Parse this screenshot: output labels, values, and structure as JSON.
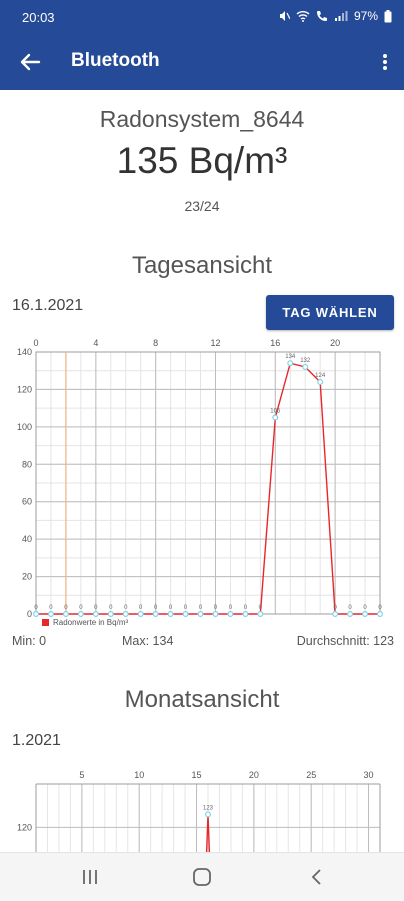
{
  "status_bar": {
    "time": "20:03",
    "battery": "97%"
  },
  "app_bar": {
    "title": "Bluetooth"
  },
  "device": {
    "name": "Radonsystem_8644",
    "current_value": "135 Bq/m³",
    "count": "23/24"
  },
  "daily": {
    "section_title": "Tagesansicht",
    "date": "16.1.2021",
    "select_day_label": "TAG WÄHLEN",
    "min_label": "Min: 0",
    "max_label": "Max: 134",
    "avg_label": "Durchschnitt: 123"
  },
  "monthly": {
    "section_title": "Monatsansicht",
    "date": "1.2021"
  },
  "colors": {
    "primary": "#254a97",
    "line": "#e8272b",
    "point": "#7fd3e6",
    "marker": "#f2b27a"
  },
  "chart_data": [
    {
      "type": "line",
      "legend": "Radonwerte in Bq/m³",
      "x_ticks": [
        0,
        4,
        8,
        12,
        16,
        20
      ],
      "y_ticks": [
        0,
        20,
        40,
        60,
        80,
        100,
        120,
        140
      ],
      "xlim": [
        0,
        23
      ],
      "ylim": [
        0,
        140
      ],
      "x": [
        0,
        1,
        2,
        3,
        4,
        5,
        6,
        7,
        8,
        9,
        10,
        11,
        12,
        13,
        14,
        15,
        16,
        17,
        18,
        19,
        20,
        21,
        22,
        23
      ],
      "series": [
        {
          "values": [
            0,
            0,
            0,
            0,
            0,
            0,
            0,
            0,
            0,
            0,
            0,
            0,
            0,
            0,
            0,
            0,
            105,
            134,
            132,
            124,
            0,
            0,
            0,
            0
          ]
        }
      ],
      "point_labels": [
        "0",
        "0",
        "0",
        "0",
        "0",
        "0",
        "0",
        "0",
        "0",
        "0",
        "0",
        "0",
        "0",
        "0",
        "0",
        "0",
        "105",
        "134",
        "132",
        "124",
        "0",
        "0",
        "0",
        "0"
      ]
    },
    {
      "type": "line",
      "x_ticks": [
        5,
        10,
        15,
        20,
        25,
        30
      ],
      "y_ticks": [
        120
      ],
      "xlim": [
        1,
        31
      ],
      "ylim": [
        100,
        130
      ],
      "x": [
        16
      ],
      "series": [
        {
          "values": [
            123
          ]
        }
      ],
      "point_labels": [
        "123"
      ]
    }
  ]
}
